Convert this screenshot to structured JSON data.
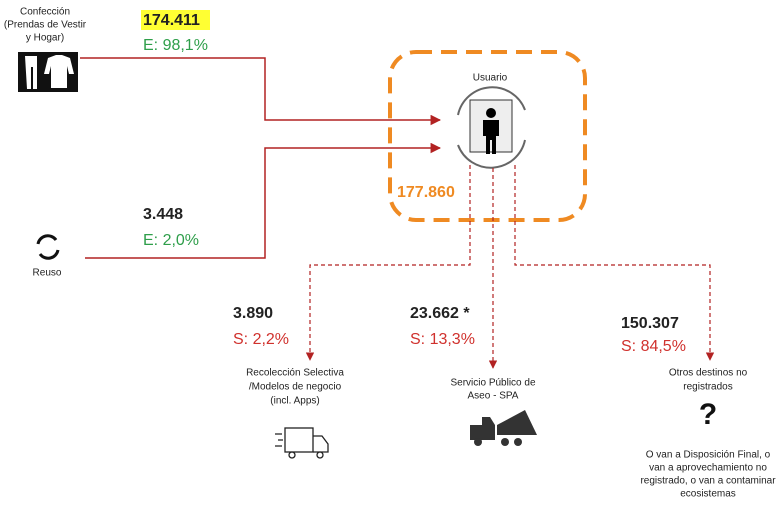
{
  "sources": [
    {
      "label": [
        "Confección",
        "(Prendas de Vestir",
        "y Hogar)"
      ],
      "value": "174.411",
      "share": "E: 98,1%"
    },
    {
      "label": [
        "Reuso"
      ],
      "value": "3.448",
      "share": "E: 2,0%"
    }
  ],
  "user": {
    "label": "Usuario",
    "total": "177.860"
  },
  "destinations": [
    {
      "value": "3.890",
      "share": "S: 2,2%",
      "label": [
        "Recolección Selectiva",
        "/Modelos de negocio",
        "(incl. Apps)"
      ]
    },
    {
      "value": "23.662 *",
      "share": "S: 13,3%",
      "label": [
        "Servicio Público de",
        "Aseo - SPA"
      ]
    },
    {
      "value": "150.307",
      "share": "S: 84,5%",
      "label": [
        "Otros destinos no",
        "registrados"
      ],
      "symbol": "?",
      "note": [
        "O van a Disposición Final, o",
        "van a aprovechamiento no",
        "registrado, o van a contaminar",
        "ecosistemas"
      ]
    }
  ]
}
